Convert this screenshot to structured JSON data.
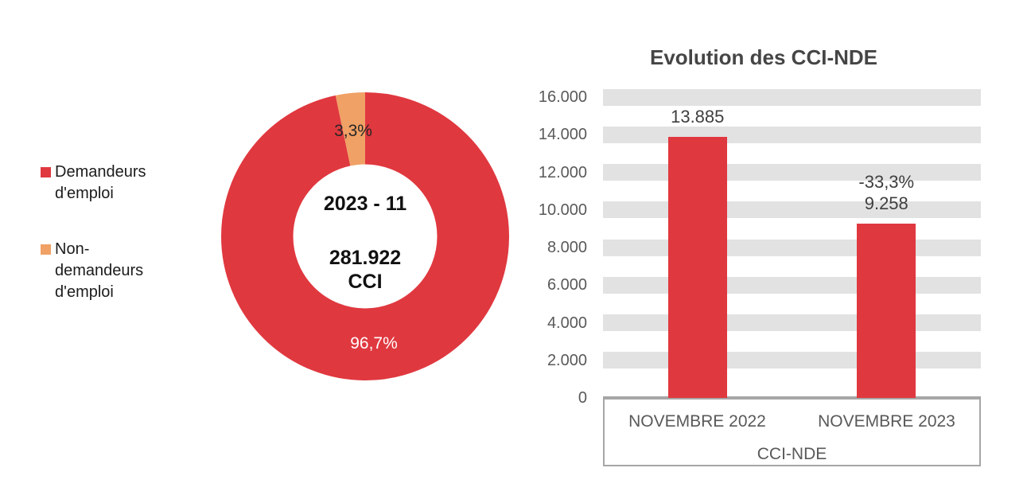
{
  "colors": {
    "red": "#e0383f",
    "orange": "#f0a165",
    "grid_band_gray": "#e2e2e2",
    "axis_gray": "#a6a6a6",
    "title_gray": "#454545",
    "tick_label_gray": "#595959",
    "data_label_gray": "#3f3f3f",
    "legend_text": "#1c1c1c",
    "big_slice_label_white": "#ffffff"
  },
  "legend": {
    "items": [
      {
        "label": "Demandeurs d'emploi",
        "color": "#e0383f"
      },
      {
        "label": "Non-demandeurs d'emploi",
        "color": "#f0a165"
      }
    ]
  },
  "chart_data": [
    {
      "type": "pie",
      "subtype": "donut",
      "labels": [
        "Demandeurs d'emploi",
        "Non-demandeurs d'emploi"
      ],
      "values": [
        96.7,
        3.3
      ],
      "value_labels": [
        "96,7%",
        "3,3%"
      ],
      "colors": [
        "#e0383f",
        "#f0a165"
      ],
      "donut_hole_ratio": 0.5,
      "start_angle_deg": 0,
      "direction": "clockwise",
      "center_text": [
        "2023 - 11",
        "281.922",
        "CCI"
      ],
      "legend_position": "left"
    },
    {
      "type": "bar",
      "title": "Evolution des CCI-NDE",
      "categories": [
        "NOVEMBRE 2022",
        "NOVEMBRE 2023"
      ],
      "values": [
        13885,
        9258
      ],
      "bar_labels": [
        [
          "13.885"
        ],
        [
          "-33,3%",
          "9.258"
        ]
      ],
      "bar_color": "#e0383f",
      "xlabel": "CCI-NDE",
      "ylabel": "",
      "ylim": [
        0,
        16000
      ],
      "ytick_step": 2000,
      "ytick_labels": [
        "0",
        "2.000",
        "4.000",
        "6.000",
        "8.000",
        "10.000",
        "12.000",
        "14.000",
        "16.000"
      ],
      "grid": "horizontal-bands",
      "legend_position": "none"
    }
  ]
}
